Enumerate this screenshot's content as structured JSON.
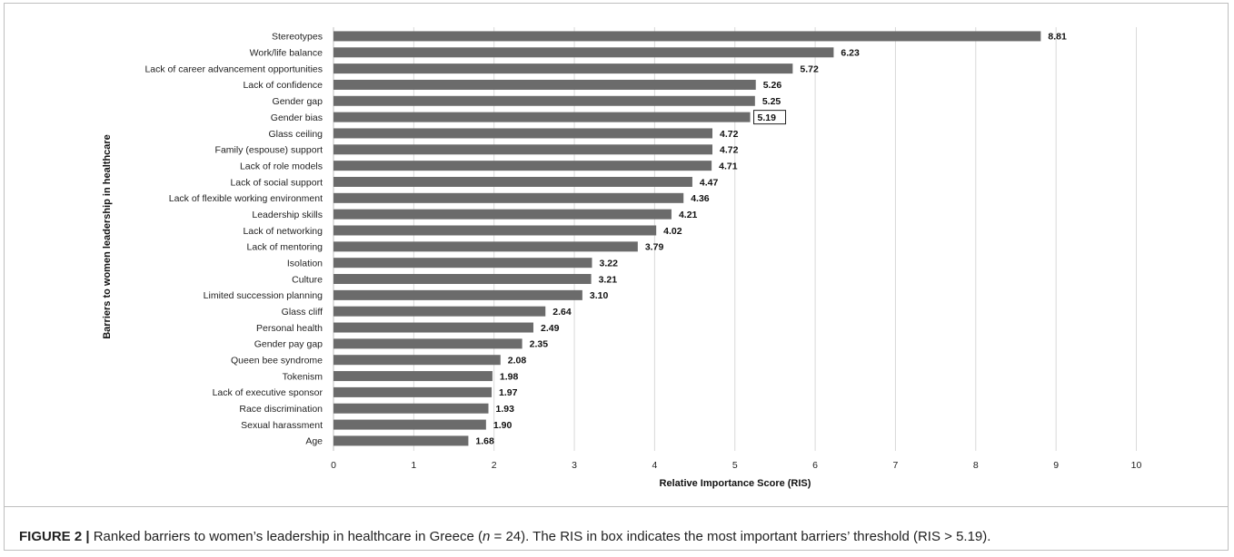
{
  "chart_data": {
    "type": "bar",
    "orientation": "horizontal",
    "categories": [
      "Stereotypes",
      "Work/life balance",
      "Lack of career advancement opportunities",
      "Lack of confidence",
      "Gender gap",
      "Gender bias",
      "Glass ceiling",
      "Family (espouse) support",
      "Lack of role models",
      "Lack of social support",
      "Lack of flexible working environment",
      "Leadership skills",
      "Lack of networking",
      "Lack of mentoring",
      "Isolation",
      "Culture",
      "Limited succession planning",
      "Glass cliff",
      "Personal health",
      "Gender pay gap",
      "Queen bee syndrome",
      "Tokenism",
      "Lack of executive sponsor",
      "Race discrimination",
      "Sexual harassment",
      "Age"
    ],
    "values": [
      8.81,
      6.23,
      5.72,
      5.26,
      5.25,
      5.19,
      4.72,
      4.72,
      4.71,
      4.47,
      4.36,
      4.21,
      4.02,
      3.79,
      3.22,
      3.21,
      3.1,
      2.64,
      2.49,
      2.35,
      2.08,
      1.98,
      1.97,
      1.93,
      1.9,
      1.68
    ],
    "value_labels": [
      "8.81",
      "6.23",
      "5.72",
      "5.26",
      "5.25",
      "5.19",
      "4.72",
      "4.72",
      "4.71",
      "4.47",
      "4.36",
      "4.21",
      "4.02",
      "3.79",
      "3.22",
      "3.21",
      "3.10",
      "2.64",
      "2.49",
      "2.35",
      "2.08",
      "1.98",
      "1.97",
      "1.93",
      "1.90",
      "1.68"
    ],
    "boxed_label": "5.19",
    "xlabel": "Relative Importance Score (RIS)",
    "ylabel": "Barriers to women leadership in healthcare",
    "xlim": [
      0,
      10
    ],
    "xticks": [
      "0",
      "1",
      "2",
      "3",
      "4",
      "5",
      "6",
      "7",
      "8",
      "9",
      "10"
    ],
    "grid": "vertical",
    "colors": {
      "bar": "#6b6b6b",
      "grid": "#d9d9d9",
      "frame": "#bfbfbf"
    }
  },
  "caption": {
    "label": "FIGURE 2 |",
    "text_before_n": " Ranked barriers to women’s leadership in healthcare in Greece (",
    "n_symbol": "n",
    "text_after_n": " = 24). The RIS in box indicates the most important barriers’ threshold (RIS > 5.19)."
  }
}
